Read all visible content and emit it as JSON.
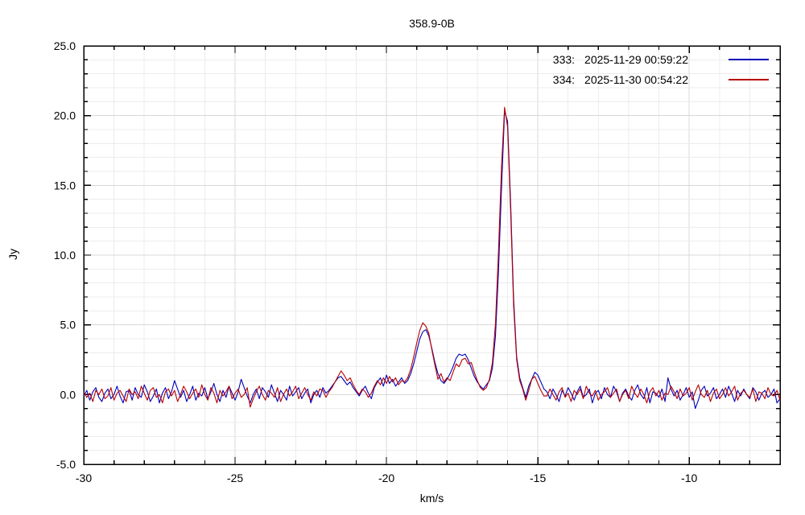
{
  "window": {
    "background": "#ffffff"
  },
  "chart_data": {
    "type": "line",
    "title": "358.9-0B",
    "xlabel": "km/s",
    "ylabel": "Jy",
    "xlim": [
      -30,
      -7
    ],
    "ylim": [
      -5,
      25
    ],
    "x_major_ticks": [
      {
        "value": -30,
        "label": "-30"
      },
      {
        "value": -25,
        "label": "-25"
      },
      {
        "value": -20,
        "label": "-20"
      },
      {
        "value": -15,
        "label": "-15"
      },
      {
        "value": -10,
        "label": "-10"
      }
    ],
    "y_major_ticks": [
      {
        "value": 25,
        "label": "25.0"
      },
      {
        "value": 20,
        "label": "20.0"
      },
      {
        "value": 15,
        "label": "15.0"
      },
      {
        "value": 10,
        "label": "10.0"
      },
      {
        "value": 5,
        "label": "5.0"
      },
      {
        "value": 0,
        "label": "0.0"
      },
      {
        "value": -5,
        "label": "-5.0"
      }
    ],
    "minor_tick_step": 1,
    "grid": "on-minor-and-major",
    "legend_position": "top-right-inside",
    "grid_minor_color": "#ececec",
    "grid_major_color": "#d8d8d8",
    "x_start": -30,
    "x_step": 0.1,
    "series": [
      {
        "id": "333:",
        "timestamp": "2025-11-29 00:59:22",
        "color": "#0000b8",
        "values": [
          -0.1,
          0.3,
          -0.4,
          0.2,
          0.5,
          -0.2,
          -0.5,
          0.1,
          0.4,
          -0.3,
          0.0,
          0.6,
          -0.1,
          -0.6,
          0.2,
          0.3,
          -0.4,
          0.5,
          0.0,
          -0.2,
          0.7,
          0.2,
          -0.5,
          -0.1,
          0.4,
          -0.6,
          0.1,
          0.5,
          -0.3,
          0.2,
          1.0,
          0.4,
          -0.2,
          0.3,
          -0.5,
          0.0,
          0.6,
          -0.4,
          0.1,
          -0.1,
          0.5,
          -0.3,
          0.2,
          0.8,
          0.0,
          -0.5,
          0.3,
          -0.2,
          0.6,
          0.1,
          -0.4,
          0.2,
          1.1,
          0.5,
          -0.1,
          -0.6,
          0.0,
          0.4,
          -0.3,
          0.5,
          0.2,
          -0.2,
          0.7,
          0.1,
          -0.5,
          0.3,
          0.0,
          -0.4,
          0.6,
          -0.1,
          0.2,
          0.5,
          -0.3,
          0.1,
          0.4,
          -0.6,
          0.0,
          0.3,
          -0.2,
          0.5,
          0.1,
          0.3,
          0.6,
          0.9,
          1.2,
          1.3,
          1.0,
          0.7,
          0.9,
          0.5,
          0.2,
          -0.1,
          0.3,
          0.6,
          0.1,
          -0.3,
          0.5,
          0.9,
          1.2,
          0.6,
          1.4,
          0.8,
          1.1,
          0.6,
          0.9,
          1.2,
          0.8,
          1.0,
          1.5,
          2.2,
          3.1,
          4.0,
          4.5,
          4.65,
          4.2,
          3.3,
          2.3,
          1.5,
          1.0,
          0.8,
          1.1,
          1.5,
          2.0,
          2.6,
          2.9,
          2.8,
          2.9,
          2.5,
          1.9,
          1.3,
          0.9,
          0.6,
          0.4,
          0.7,
          1.0,
          1.9,
          4.2,
          8.8,
          14.8,
          20.3,
          19.6,
          13.8,
          6.9,
          2.7,
          1.2,
          0.5,
          -0.2,
          0.6,
          1.1,
          1.6,
          1.4,
          0.9,
          0.4,
          0.2,
          -0.3,
          0.4,
          0.0,
          -0.5,
          0.3,
          -0.1,
          0.5,
          0.1,
          -0.4,
          0.2,
          0.6,
          -0.2,
          0.0,
          0.4,
          -0.6,
          0.1,
          0.3,
          -0.3,
          0.5,
          0.0,
          -0.2,
          0.6,
          0.2,
          -0.5,
          0.1,
          0.4,
          -0.1,
          -0.4,
          0.3,
          0.7,
          0.0,
          -0.3,
          0.5,
          -0.6,
          0.2,
          0.1,
          -0.2,
          0.4,
          -0.5,
          1.2,
          0.4,
          -0.1,
          0.3,
          -0.4,
          0.0,
          0.5,
          -0.2,
          0.2,
          -1.0,
          -0.4,
          0.3,
          0.6,
          -0.1,
          0.1,
          0.5,
          -0.3,
          0.0,
          0.4,
          -0.2,
          0.6,
          0.1,
          -0.5,
          0.3,
          -0.1,
          0.4,
          0.0,
          -0.3,
          0.5,
          0.2,
          -0.4,
          0.1,
          0.3,
          -0.2,
          0.0,
          0.4,
          -0.6,
          -0.3
        ]
      },
      {
        "id": "334:",
        "timestamp": "2025-11-30 00:54:22",
        "color": "#b80000",
        "values": [
          0.2,
          -0.2,
          0.1,
          -0.5,
          0.3,
          0.0,
          0.4,
          -0.3,
          -0.1,
          0.5,
          -0.4,
          0.1,
          0.3,
          -0.1,
          -0.5,
          0.4,
          0.0,
          0.2,
          -0.3,
          0.6,
          0.1,
          -0.4,
          0.3,
          0.5,
          -0.2,
          0.0,
          -0.6,
          0.2,
          0.4,
          -0.1,
          0.3,
          -0.5,
          0.0,
          0.6,
          0.2,
          -0.3,
          0.1,
          0.4,
          -0.2,
          0.7,
          0.0,
          -0.4,
          0.5,
          0.1,
          -0.6,
          0.3,
          -0.1,
          0.2,
          0.6,
          -0.3,
          0.1,
          0.4,
          -0.2,
          0.0,
          0.5,
          -0.9,
          -0.3,
          0.2,
          0.6,
          0.0,
          -0.4,
          0.3,
          0.1,
          -0.2,
          0.5,
          -0.5,
          0.0,
          0.4,
          -0.1,
          0.2,
          0.6,
          -0.3,
          0.1,
          0.5,
          0.0,
          -0.4,
          0.2,
          -0.1,
          0.4,
          0.3,
          -0.2,
          0.2,
          0.5,
          0.9,
          1.3,
          1.7,
          1.4,
          1.0,
          1.2,
          0.7,
          0.3,
          0.0,
          0.4,
          0.2,
          -0.2,
          0.1,
          0.6,
          1.0,
          0.7,
          1.2,
          0.8,
          1.3,
          0.9,
          1.2,
          0.7,
          1.0,
          0.9,
          1.2,
          1.8,
          2.7,
          3.7,
          4.6,
          5.15,
          4.9,
          4.4,
          3.2,
          2.1,
          1.1,
          1.5,
          0.9,
          1.2,
          1.0,
          1.6,
          2.2,
          2.0,
          2.5,
          2.6,
          2.2,
          2.3,
          1.6,
          1.0,
          0.5,
          0.3,
          0.5,
          1.1,
          2.3,
          5.1,
          10.2,
          16.3,
          20.6,
          19.2,
          13.2,
          6.4,
          2.5,
          1.0,
          0.4,
          -0.4,
          0.3,
          1.1,
          1.3,
          0.8,
          0.3,
          -0.1,
          -0.1,
          0.4,
          0.0,
          -0.4,
          0.2,
          0.5,
          -0.2,
          0.1,
          -0.5,
          0.3,
          0.0,
          0.4,
          -0.3,
          0.6,
          0.1,
          -0.1,
          0.3,
          -0.4,
          0.0,
          0.2,
          0.5,
          -0.2,
          0.1,
          0.4,
          -0.5,
          0.0,
          0.3,
          -0.3,
          0.6,
          0.1,
          -0.2,
          0.4,
          0.0,
          -0.6,
          0.2,
          0.5,
          -0.1,
          0.3,
          -0.4,
          0.1,
          0.0,
          0.6,
          0.2,
          -0.3,
          0.4,
          -0.1,
          0.1,
          0.5,
          -0.4,
          0.2,
          0.7,
          0.0,
          -0.2,
          0.3,
          -0.5,
          0.1,
          0.4,
          -0.3,
          0.0,
          0.5,
          -0.1,
          0.2,
          0.6,
          -0.4,
          0.1,
          0.3,
          0.0,
          -0.2,
          0.4,
          -0.5,
          0.2,
          0.1,
          -0.3,
          0.5,
          0.0,
          -0.1,
          0.3,
          -0.4
        ]
      }
    ]
  }
}
